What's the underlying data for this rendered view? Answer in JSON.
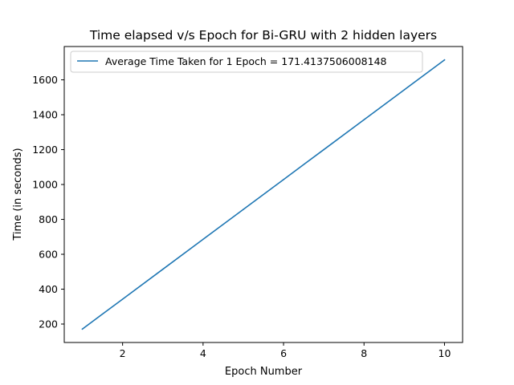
{
  "chart_data": {
    "type": "line",
    "title": "Time elapsed v/s Epoch for Bi-GRU with 2 hidden layers",
    "xlabel": "Epoch Number",
    "ylabel": "Time (in seconds)",
    "xlim": [
      0.55,
      10.45
    ],
    "ylim": [
      94.3,
      1791.0
    ],
    "xticks": [
      2,
      4,
      6,
      8,
      10
    ],
    "yticks": [
      200,
      400,
      600,
      800,
      1000,
      1200,
      1400,
      1600
    ],
    "grid": false,
    "legend_position": "upper-left",
    "series": [
      {
        "name": "Average Time Taken for 1 Epoch = 171.4137506008148",
        "color": "#1f77b4",
        "x": [
          1,
          2,
          3,
          4,
          5,
          6,
          7,
          8,
          9,
          10
        ],
        "y": [
          171.4,
          342.8,
          514.2,
          685.7,
          857.1,
          1028.5,
          1199.9,
          1371.3,
          1542.7,
          1714.1
        ]
      }
    ]
  }
}
